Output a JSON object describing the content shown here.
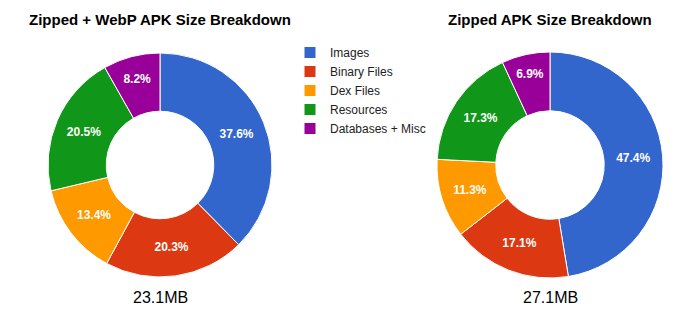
{
  "chart_data": [
    {
      "type": "pie",
      "title": "Zipped + WebP APK Size Breakdown",
      "annotations": [
        "23.1MB"
      ],
      "categories": [
        "Images",
        "Binary Files",
        "Dex Files",
        "Resources",
        "Databases + Misc"
      ],
      "values": [
        37.6,
        20.3,
        13.4,
        20.5,
        8.2
      ],
      "value_labels": [
        "37.6%",
        "20.3%",
        "13.4%",
        "20.5%",
        "8.2%"
      ],
      "colors": [
        "#3366cc",
        "#dc3912",
        "#ff9900",
        "#109618",
        "#990099"
      ],
      "data_labels": true,
      "legend": "right"
    },
    {
      "type": "pie",
      "title": "Zipped APK Size Breakdown",
      "annotations": [
        "27.1MB"
      ],
      "categories": [
        "Images",
        "Binary Files",
        "Dex Files",
        "Resources",
        "Databases + Misc"
      ],
      "values": [
        47.4,
        17.1,
        11.3,
        17.3,
        6.9
      ],
      "value_labels": [
        "47.4%",
        "17.1%",
        "11.3%",
        "17.3%",
        "6.9%"
      ],
      "colors": [
        "#3366cc",
        "#dc3912",
        "#ff9900",
        "#109618",
        "#990099"
      ],
      "data_labels": true
    }
  ]
}
